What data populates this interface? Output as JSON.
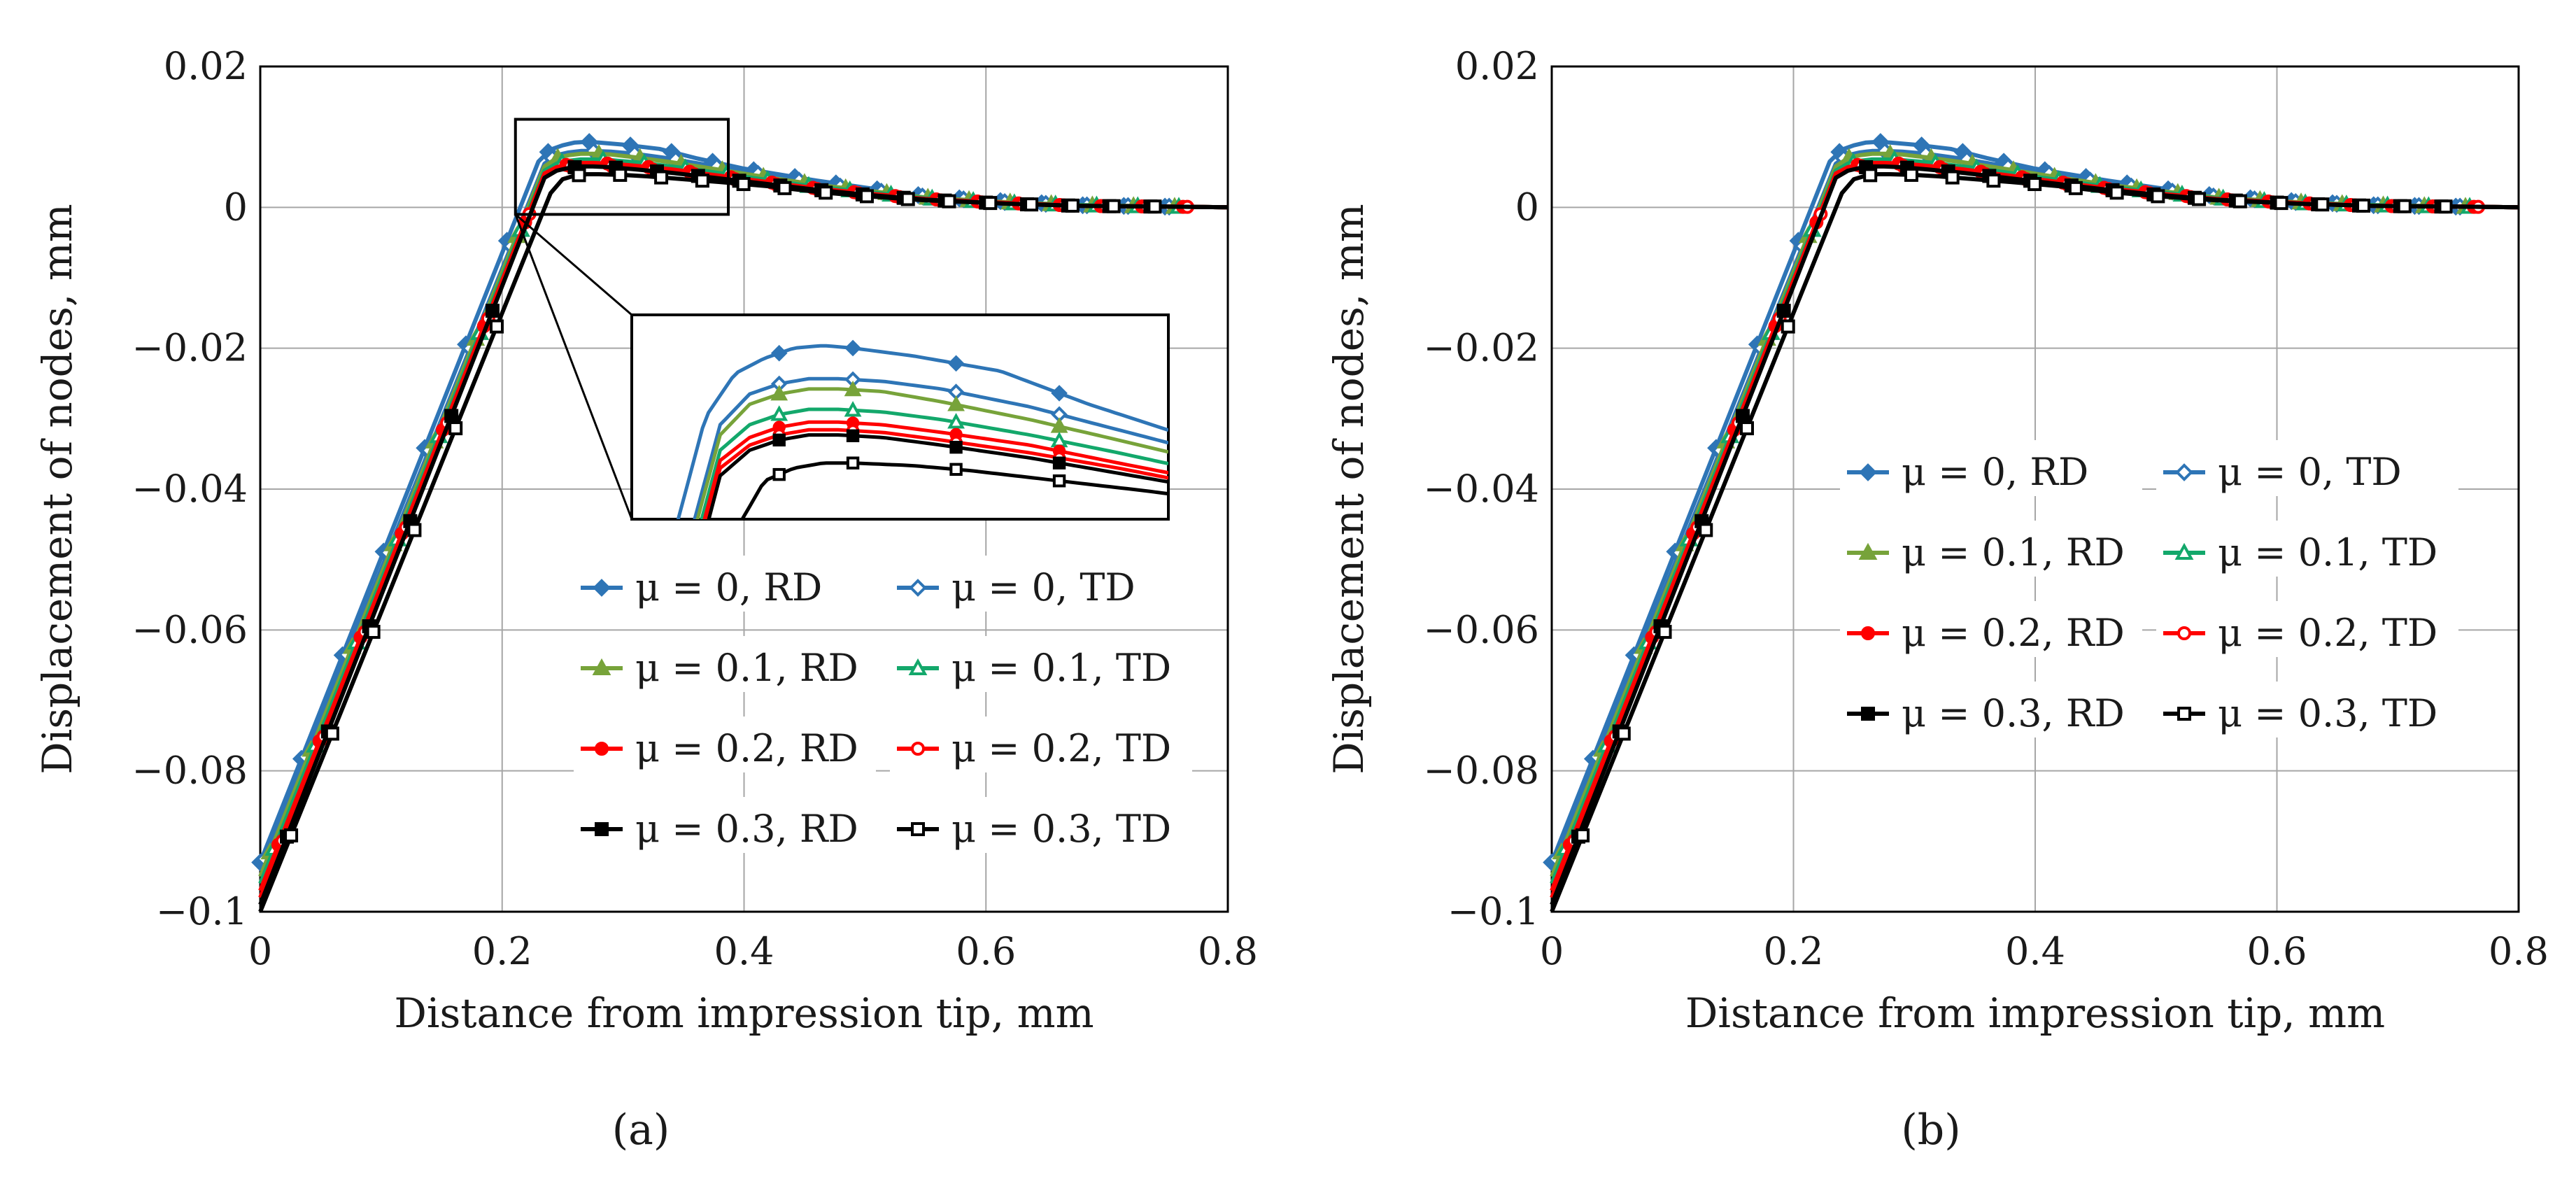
{
  "figure_labels": [
    "(a)",
    "(b)"
  ],
  "chart_data": [
    {
      "id": "a",
      "type": "line",
      "panel_label": "(a)",
      "xlabel": "Distance from impression tip, mm",
      "ylabel": "Displacement of nodes, mm",
      "xlim": [
        0,
        0.8
      ],
      "ylim": [
        -0.1,
        0.02
      ],
      "xticks": [
        0,
        0.2,
        0.4,
        0.6,
        0.8
      ],
      "xtick_labels": [
        "0",
        "0.2",
        "0.4",
        "0.6",
        "0.8"
      ],
      "yticks": [
        0.02,
        0,
        -0.02,
        -0.04,
        -0.06,
        -0.08,
        -0.1
      ],
      "ytick_labels": [
        "0.02",
        "0",
        "−0.02",
        "−0.04",
        "−0.06",
        "−0.08",
        "−0.1"
      ],
      "grid": true,
      "inset": {
        "present": true,
        "zoom_region_x": [
          0.211,
          0.387
        ],
        "zoom_region_y": [
          -0.001,
          0.0125
        ]
      },
      "legend_position": "lower-right",
      "legend": [
        "μ = 0, RD",
        "μ  = 0, TD",
        "μ = 0.1, RD",
        "μ = 0.1, TD",
        "μ = 0.2, RD",
        "μ = 0.2, TD",
        "μ = 0.3, RD",
        "μ = 0.3, TD"
      ],
      "series": [
        {
          "name": "μ = 0, RD",
          "color": "#2e75b6",
          "marker": "diamond",
          "filled": true,
          "offset": 0.0,
          "x": [
            0,
            0.23,
            0.24,
            0.25,
            0.26,
            0.27,
            0.28,
            0.3,
            0.33,
            0.36,
            0.4,
            0.46,
            0.5,
            0.55,
            0.62,
            0.68,
            0.75,
            0.8
          ],
          "y": [
            -0.093,
            0.0065,
            0.0082,
            0.0088,
            0.0092,
            0.0093,
            0.0092,
            0.0089,
            0.0083,
            0.007,
            0.0055,
            0.0038,
            0.0028,
            0.0016,
            0.0008,
            0.0003,
            0.0001,
            0
          ]
        },
        {
          "name": "μ  = 0, TD",
          "color": "#2e75b6",
          "marker": "diamond",
          "filled": false,
          "offset": 0.0035,
          "x": [
            0,
            0.235,
            0.245,
            0.255,
            0.265,
            0.275,
            0.29,
            0.31,
            0.34,
            0.37,
            0.41,
            0.46,
            0.5,
            0.55,
            0.62,
            0.68,
            0.75,
            0.8
          ],
          "y": [
            -0.094,
            0.0062,
            0.0074,
            0.0078,
            0.008,
            0.008,
            0.0079,
            0.0076,
            0.0069,
            0.006,
            0.0048,
            0.0034,
            0.0025,
            0.0015,
            0.0007,
            0.0003,
            0.0001,
            0
          ]
        },
        {
          "name": "μ = 0.1, RD",
          "color": "#77a33a",
          "marker": "triangle",
          "filled": true,
          "offset": 0.008,
          "x": [
            0,
            0.235,
            0.245,
            0.255,
            0.265,
            0.275,
            0.29,
            0.31,
            0.34,
            0.37,
            0.41,
            0.46,
            0.5,
            0.55,
            0.62,
            0.68,
            0.75,
            0.8
          ],
          "y": [
            -0.095,
            0.0058,
            0.007,
            0.0074,
            0.0076,
            0.0076,
            0.0075,
            0.0071,
            0.0064,
            0.0056,
            0.0045,
            0.0032,
            0.0024,
            0.0014,
            0.0007,
            0.0003,
            0.0001,
            0
          ]
        },
        {
          "name": "μ = 0.1, TD",
          "color": "#13a86b",
          "marker": "triangle",
          "filled": false,
          "offset": 0.0115,
          "x": [
            0,
            0.235,
            0.245,
            0.255,
            0.265,
            0.275,
            0.29,
            0.31,
            0.34,
            0.37,
            0.41,
            0.46,
            0.5,
            0.55,
            0.62,
            0.68,
            0.75,
            0.8
          ],
          "y": [
            -0.096,
            0.0052,
            0.0062,
            0.0066,
            0.0068,
            0.0068,
            0.0067,
            0.0064,
            0.0058,
            0.0051,
            0.0041,
            0.0029,
            0.0022,
            0.0013,
            0.0006,
            0.0003,
            0.0001,
            0
          ]
        },
        {
          "name": "μ = 0.2, RD",
          "color": "#ff0000",
          "marker": "circle",
          "filled": true,
          "offset": 0.015,
          "x": [
            0,
            0.235,
            0.245,
            0.255,
            0.265,
            0.275,
            0.29,
            0.31,
            0.34,
            0.37,
            0.41,
            0.46,
            0.5,
            0.55,
            0.62,
            0.68,
            0.75,
            0.8
          ],
          "y": [
            -0.097,
            0.0048,
            0.0057,
            0.0061,
            0.0063,
            0.0063,
            0.0062,
            0.0059,
            0.0054,
            0.0047,
            0.0038,
            0.0027,
            0.002,
            0.0012,
            0.0006,
            0.0002,
            0.0001,
            0
          ]
        },
        {
          "name": "μ = 0.2, TD",
          "color": "#ff0000",
          "marker": "circle",
          "filled": false,
          "offset": 0.0185,
          "x": [
            0,
            0.235,
            0.245,
            0.255,
            0.265,
            0.275,
            0.29,
            0.31,
            0.34,
            0.37,
            0.41,
            0.46,
            0.5,
            0.55,
            0.62,
            0.68,
            0.75,
            0.8
          ],
          "y": [
            -0.098,
            0.0045,
            0.0054,
            0.0058,
            0.006,
            0.006,
            0.0059,
            0.0056,
            0.0051,
            0.0045,
            0.0036,
            0.0026,
            0.0019,
            0.0011,
            0.0005,
            0.0002,
            0.0001,
            0
          ]
        },
        {
          "name": "μ = 0.3, RD",
          "color": "#000000",
          "marker": "square",
          "filled": true,
          "offset": 0.022,
          "x": [
            0,
            0.235,
            0.245,
            0.255,
            0.265,
            0.275,
            0.29,
            0.31,
            0.34,
            0.37,
            0.41,
            0.46,
            0.5,
            0.55,
            0.62,
            0.68,
            0.75,
            0.8
          ],
          "y": [
            -0.099,
            0.0042,
            0.0052,
            0.0056,
            0.0058,
            0.0058,
            0.0057,
            0.0054,
            0.0049,
            0.0043,
            0.0035,
            0.0025,
            0.0018,
            0.0011,
            0.0005,
            0.0002,
            0.0001,
            0
          ]
        },
        {
          "name": "μ = 0.3, TD",
          "color": "#000000",
          "marker": "square",
          "filled": false,
          "offset": 0.0255,
          "x": [
            0,
            0.24,
            0.25,
            0.26,
            0.27,
            0.28,
            0.3,
            0.32,
            0.35,
            0.38,
            0.42,
            0.46,
            0.5,
            0.55,
            0.62,
            0.68,
            0.75,
            0.8
          ],
          "y": [
            -0.1,
            0.002,
            0.004,
            0.0045,
            0.0047,
            0.0047,
            0.0046,
            0.0044,
            0.004,
            0.0036,
            0.003,
            0.0022,
            0.0016,
            0.001,
            0.0005,
            0.0002,
            0.0001,
            0
          ]
        }
      ]
    },
    {
      "id": "b",
      "type": "line",
      "panel_label": "(b)",
      "xlabel": "Distance from impression tip, mm",
      "ylabel": "Displacement of nodes, mm",
      "xlim": [
        0,
        0.8
      ],
      "ylim": [
        -0.1,
        0.02
      ],
      "xticks": [
        0,
        0.2,
        0.4,
        0.6,
        0.8
      ],
      "xtick_labels": [
        "0",
        "0.2",
        "0.4",
        "0.6",
        "0.8"
      ],
      "yticks": [
        0.02,
        0,
        -0.02,
        -0.04,
        -0.06,
        -0.08,
        -0.1
      ],
      "ytick_labels": [
        "0.02",
        "0",
        "−0.02",
        "−0.04",
        "−0.06",
        "−0.08",
        "−0.1"
      ],
      "grid": true,
      "inset": {
        "present": false
      },
      "legend_position": "center-right",
      "legend": [
        "μ = 0, RD",
        "μ  = 0, TD",
        "μ = 0.1, RD",
        "μ = 0.1, TD",
        "μ = 0.2, RD",
        "μ = 0.2, TD",
        "μ = 0.3, RD",
        "μ = 0.3, TD"
      ],
      "series": [
        {
          "name": "μ = 0, RD",
          "color": "#2e75b6",
          "marker": "diamond",
          "filled": true,
          "offset": 0.0,
          "x": [
            0,
            0.23,
            0.24,
            0.25,
            0.26,
            0.27,
            0.28,
            0.3,
            0.33,
            0.36,
            0.4,
            0.46,
            0.5,
            0.55,
            0.62,
            0.68,
            0.75,
            0.8
          ],
          "y": [
            -0.093,
            0.0065,
            0.0082,
            0.0088,
            0.0092,
            0.0093,
            0.0092,
            0.0089,
            0.0083,
            0.007,
            0.0055,
            0.0038,
            0.0028,
            0.0016,
            0.0008,
            0.0003,
            0.0001,
            0
          ]
        },
        {
          "name": "μ  = 0, TD",
          "color": "#2e75b6",
          "marker": "diamond",
          "filled": false,
          "offset": 0.0035,
          "x": [
            0,
            0.235,
            0.245,
            0.255,
            0.265,
            0.275,
            0.29,
            0.31,
            0.34,
            0.37,
            0.41,
            0.46,
            0.5,
            0.55,
            0.62,
            0.68,
            0.75,
            0.8
          ],
          "y": [
            -0.094,
            0.0062,
            0.0074,
            0.0078,
            0.008,
            0.008,
            0.0079,
            0.0076,
            0.0069,
            0.006,
            0.0048,
            0.0034,
            0.0025,
            0.0015,
            0.0007,
            0.0003,
            0.0001,
            0
          ]
        },
        {
          "name": "μ = 0.1, RD",
          "color": "#77a33a",
          "marker": "triangle",
          "filled": true,
          "offset": 0.008,
          "x": [
            0,
            0.235,
            0.245,
            0.255,
            0.265,
            0.275,
            0.29,
            0.31,
            0.34,
            0.37,
            0.41,
            0.46,
            0.5,
            0.55,
            0.62,
            0.68,
            0.75,
            0.8
          ],
          "y": [
            -0.095,
            0.0058,
            0.007,
            0.0074,
            0.0076,
            0.0076,
            0.0075,
            0.0071,
            0.0064,
            0.0056,
            0.0045,
            0.0032,
            0.0024,
            0.0014,
            0.0007,
            0.0003,
            0.0001,
            0
          ]
        },
        {
          "name": "μ = 0.1, TD",
          "color": "#13a86b",
          "marker": "triangle",
          "filled": false,
          "offset": 0.0115,
          "x": [
            0,
            0.235,
            0.245,
            0.255,
            0.265,
            0.275,
            0.29,
            0.31,
            0.34,
            0.37,
            0.41,
            0.46,
            0.5,
            0.55,
            0.62,
            0.68,
            0.75,
            0.8
          ],
          "y": [
            -0.096,
            0.0052,
            0.0062,
            0.0066,
            0.0068,
            0.0068,
            0.0067,
            0.0064,
            0.0058,
            0.0051,
            0.0041,
            0.0029,
            0.0022,
            0.0013,
            0.0006,
            0.0003,
            0.0001,
            0
          ]
        },
        {
          "name": "μ = 0.2, RD",
          "color": "#ff0000",
          "marker": "circle",
          "filled": true,
          "offset": 0.015,
          "x": [
            0,
            0.235,
            0.245,
            0.255,
            0.265,
            0.275,
            0.29,
            0.31,
            0.34,
            0.37,
            0.41,
            0.46,
            0.5,
            0.55,
            0.62,
            0.68,
            0.75,
            0.8
          ],
          "y": [
            -0.097,
            0.0048,
            0.0057,
            0.0061,
            0.0063,
            0.0063,
            0.0062,
            0.0059,
            0.0054,
            0.0047,
            0.0038,
            0.0027,
            0.002,
            0.0012,
            0.0006,
            0.0002,
            0.0001,
            0
          ]
        },
        {
          "name": "μ = 0.2, TD",
          "color": "#ff0000",
          "marker": "circle",
          "filled": false,
          "offset": 0.0185,
          "x": [
            0,
            0.235,
            0.245,
            0.255,
            0.265,
            0.275,
            0.29,
            0.31,
            0.34,
            0.37,
            0.41,
            0.46,
            0.5,
            0.55,
            0.62,
            0.68,
            0.75,
            0.8
          ],
          "y": [
            -0.098,
            0.0045,
            0.0054,
            0.0058,
            0.006,
            0.006,
            0.0059,
            0.0056,
            0.0051,
            0.0045,
            0.0036,
            0.0026,
            0.0019,
            0.0011,
            0.0005,
            0.0002,
            0.0001,
            0
          ]
        },
        {
          "name": "μ = 0.3, RD",
          "color": "#000000",
          "marker": "square",
          "filled": true,
          "offset": 0.022,
          "x": [
            0,
            0.235,
            0.245,
            0.255,
            0.265,
            0.275,
            0.29,
            0.31,
            0.34,
            0.37,
            0.41,
            0.46,
            0.5,
            0.55,
            0.62,
            0.68,
            0.75,
            0.8
          ],
          "y": [
            -0.099,
            0.0042,
            0.0052,
            0.0056,
            0.0058,
            0.0058,
            0.0057,
            0.0054,
            0.0049,
            0.0043,
            0.0035,
            0.0025,
            0.0018,
            0.0011,
            0.0005,
            0.0002,
            0.0001,
            0
          ]
        },
        {
          "name": "μ = 0.3, TD",
          "color": "#000000",
          "marker": "square",
          "filled": false,
          "offset": 0.0255,
          "x": [
            0,
            0.24,
            0.25,
            0.26,
            0.27,
            0.28,
            0.3,
            0.32,
            0.35,
            0.38,
            0.42,
            0.46,
            0.5,
            0.55,
            0.62,
            0.68,
            0.75,
            0.8
          ],
          "y": [
            -0.1,
            0.002,
            0.004,
            0.0045,
            0.0047,
            0.0047,
            0.0046,
            0.0044,
            0.004,
            0.0036,
            0.003,
            0.0022,
            0.0016,
            0.001,
            0.0005,
            0.0002,
            0.0001,
            0
          ]
        }
      ]
    }
  ]
}
